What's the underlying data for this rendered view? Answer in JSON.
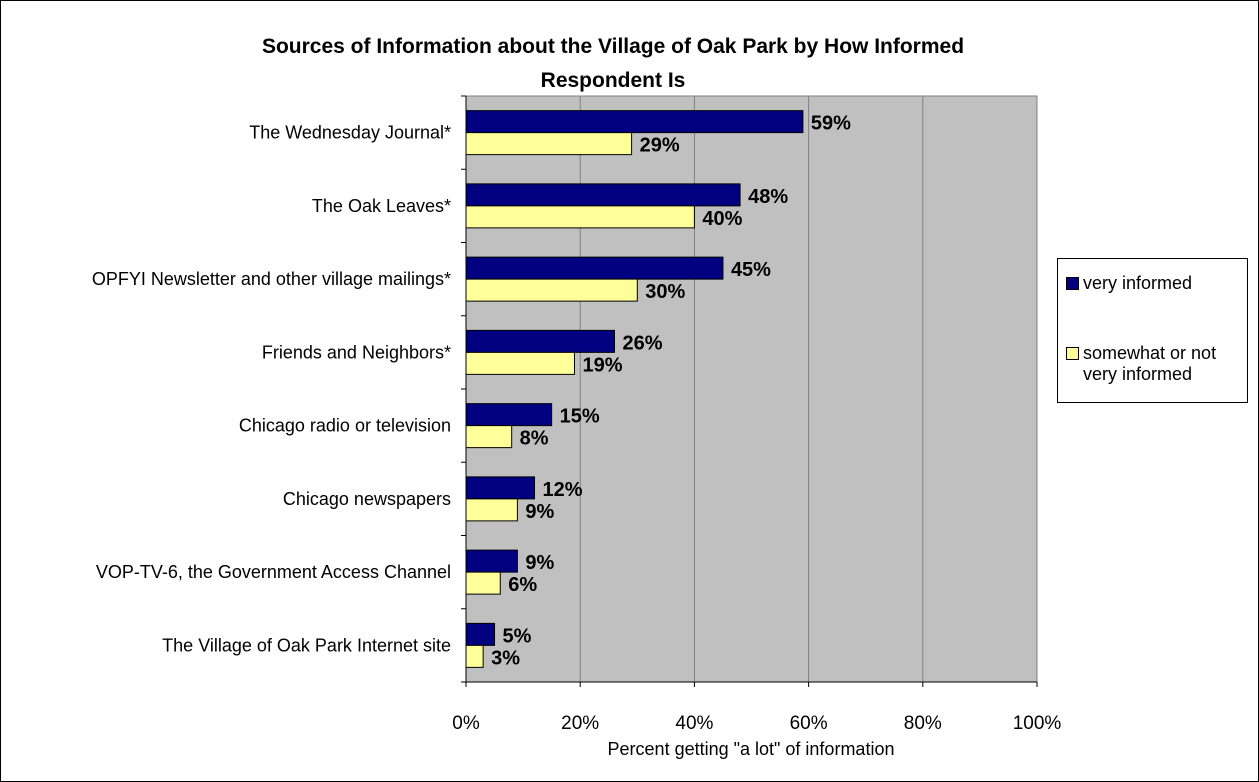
{
  "chart_data": {
    "type": "bar",
    "orientation": "horizontal",
    "title": "Sources of Information about the Village of Oak Park by How Informed Respondent Is",
    "title_lines": [
      "Sources of Information about the Village of Oak Park by How Informed",
      "Respondent Is"
    ],
    "xlabel": "Percent getting \"a lot\" of information",
    "ylabel": "",
    "xlim": [
      0,
      100
    ],
    "x_ticks": [
      "0%",
      "20%",
      "40%",
      "60%",
      "80%",
      "100%"
    ],
    "grid": "vertical",
    "legend_position": "right",
    "categories": [
      "The Wednesday Journal*",
      "The Oak Leaves*",
      "OPFYI Newsletter and other village mailings*",
      "Friends and Neighbors*",
      "Chicago radio or television",
      "Chicago newspapers",
      "VOP-TV-6, the Government Access Channel",
      "The Village of Oak Park Internet site"
    ],
    "series": [
      {
        "name": "very informed",
        "color": "#000080",
        "values": [
          59,
          48,
          45,
          26,
          15,
          12,
          9,
          5
        ],
        "labels": [
          "59%",
          "48%",
          "45%",
          "26%",
          "15%",
          "12%",
          "9%",
          "5%"
        ]
      },
      {
        "name": "somewhat or not very informed",
        "color": "#FFFF99",
        "values": [
          29,
          40,
          30,
          19,
          8,
          9,
          6,
          3
        ],
        "labels": [
          "29%",
          "40%",
          "30%",
          "19%",
          "8%",
          "9%",
          "6%",
          "3%"
        ]
      }
    ],
    "plot_background": "#C0C0C0"
  }
}
